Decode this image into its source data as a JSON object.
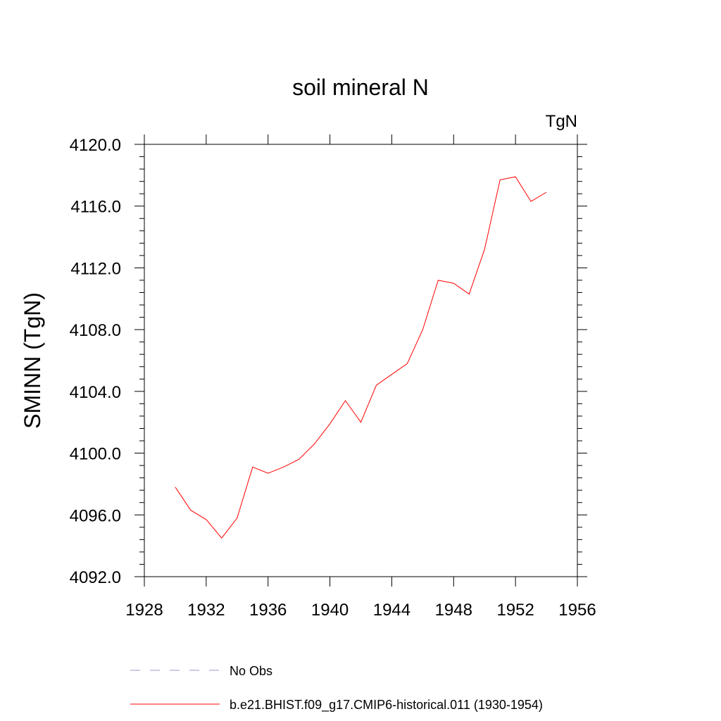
{
  "chart_data": {
    "type": "line",
    "title": "soil mineral N",
    "units": "TgN",
    "ylabel": "SMINN  (TgN)",
    "xlabel": "",
    "xlim": [
      1928,
      1956
    ],
    "ylim": [
      4092,
      4120
    ],
    "x_ticks": [
      1928,
      1932,
      1936,
      1940,
      1944,
      1948,
      1952,
      1956
    ],
    "x_tick_labels": [
      "1928",
      "1932",
      "1936",
      "1940",
      "1944",
      "1948",
      "1952",
      "1956"
    ],
    "y_ticks": [
      4092,
      4096,
      4100,
      4104,
      4108,
      4112,
      4116,
      4120
    ],
    "y_tick_labels": [
      "4092.0",
      "4096.0",
      "4100.0",
      "4104.0",
      "4108.0",
      "4112.0",
      "4116.0",
      "4120.0"
    ],
    "grid": false,
    "legend_position": "bottom",
    "series": [
      {
        "name": "b.e21.BHIST.f09_g17.CMIP6-historical.011 (1930-1954)",
        "color": "#ff0000",
        "style": "solid",
        "x": [
          1930,
          1931,
          1932,
          1933,
          1934,
          1935,
          1936,
          1937,
          1938,
          1939,
          1940,
          1941,
          1942,
          1943,
          1944,
          1945,
          1946,
          1947,
          1948,
          1949,
          1950,
          1951,
          1952,
          1953,
          1954
        ],
        "values": [
          4097.8,
          4096.3,
          4095.7,
          4094.5,
          4095.8,
          4099.1,
          4098.7,
          4099.1,
          4099.6,
          4100.6,
          4101.9,
          4103.4,
          4102.0,
          4104.4,
          4105.1,
          4105.8,
          4108.0,
          4111.2,
          4111.0,
          4110.3,
          4113.2,
          4117.7,
          4117.9,
          4116.3,
          4116.9
        ]
      }
    ],
    "legend": [
      {
        "label": "No Obs",
        "color": "#9999cc",
        "style": "dashed"
      },
      {
        "label": "b.e21.BHIST.f09_g17.CMIP6-historical.011 (1930-1954)",
        "color": "#ff0000",
        "style": "solid"
      }
    ]
  }
}
